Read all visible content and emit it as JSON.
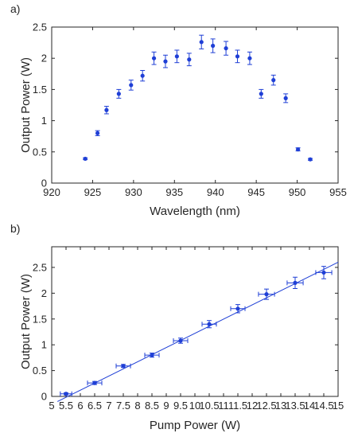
{
  "colors": {
    "marker": "#1f3fd6",
    "axis": "#262626",
    "fit": "#1f3fd6"
  },
  "chart_data": [
    {
      "panel_label": "a)",
      "type": "scatter",
      "xlabel": "Wavelength (nm)",
      "ylabel": "Output Power (W)",
      "xlim": [
        920,
        955
      ],
      "ylim": [
        0,
        2.5
      ],
      "xticks": [
        "920",
        "925",
        "930",
        "935",
        "940",
        "945",
        "950",
        "955"
      ],
      "yticks": [
        "0",
        "0.5",
        "1",
        "1.5",
        "2",
        "2.5"
      ],
      "grid": false,
      "series": [
        {
          "x": [
            924.1,
            925.6,
            926.7,
            928.2,
            929.7,
            931.1,
            932.5,
            933.9,
            935.3,
            936.8,
            938.3,
            939.7,
            941.3,
            942.7,
            944.2,
            945.6,
            947.1,
            948.6,
            950.1,
            951.6
          ],
          "y": [
            0.39,
            0.8,
            1.17,
            1.43,
            1.57,
            1.72,
            2.0,
            1.95,
            2.03,
            1.98,
            2.26,
            2.2,
            2.16,
            2.03,
            2.0,
            1.43,
            1.65,
            1.36,
            0.54,
            0.38
          ],
          "yerr": [
            0.015,
            0.04,
            0.06,
            0.07,
            0.08,
            0.085,
            0.1,
            0.1,
            0.1,
            0.1,
            0.11,
            0.11,
            0.11,
            0.1,
            0.1,
            0.07,
            0.08,
            0.07,
            0.025,
            0.015
          ]
        }
      ]
    },
    {
      "panel_label": "b)",
      "type": "scatter",
      "xlabel": "Pump Power (W)",
      "ylabel": "Output Power (W)",
      "xlim": [
        5,
        15
      ],
      "ylim": [
        0,
        2.9
      ],
      "xticks": [
        "5",
        "5.5",
        "6",
        "6.5",
        "7",
        "7.5",
        "8",
        "8.5",
        "9",
        "9.5",
        "10",
        "10.5",
        "11",
        "11.5",
        "12",
        "12.5",
        "13",
        "13.5",
        "14",
        "14.5",
        "15"
      ],
      "yticks": [
        "0",
        "0.5",
        "1",
        "1.5",
        "2",
        "2.5"
      ],
      "grid": false,
      "series": [
        {
          "x": [
            5.5,
            6.5,
            7.5,
            8.5,
            9.5,
            10.5,
            11.5,
            12.5,
            13.5,
            14.5
          ],
          "y": [
            0.05,
            0.26,
            0.59,
            0.8,
            1.08,
            1.4,
            1.7,
            1.98,
            2.2,
            2.4
          ],
          "xerr": [
            0.2,
            0.25,
            0.25,
            0.25,
            0.25,
            0.25,
            0.25,
            0.28,
            0.28,
            0.28
          ],
          "yerr": [
            0.02,
            0.03,
            0.03,
            0.04,
            0.05,
            0.07,
            0.08,
            0.1,
            0.11,
            0.12
          ]
        }
      ],
      "fit_line": {
        "x": [
          5.2,
          15
        ],
        "y": [
          -0.1,
          2.6
        ]
      }
    }
  ]
}
